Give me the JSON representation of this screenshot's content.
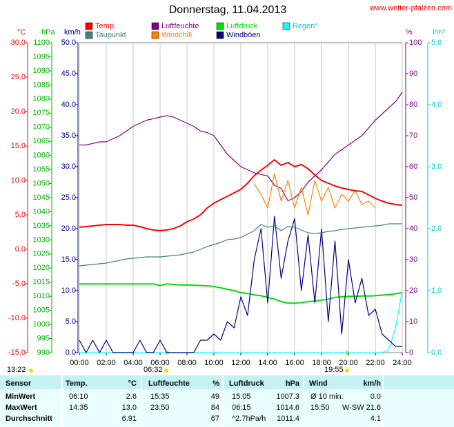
{
  "chart_data": {
    "type": "line",
    "title": "Donnerstag, 11.04.2013",
    "source": "www.wetter-pfalzen.com",
    "x": [
      0,
      0.5,
      1,
      1.5,
      2,
      2.5,
      3,
      3.5,
      4,
      4.5,
      5,
      5.5,
      6,
      6.5,
      7,
      7.5,
      8,
      8.5,
      9,
      9.5,
      10,
      10.5,
      11,
      11.5,
      12,
      12.5,
      13,
      13.5,
      14,
      14.5,
      15,
      15.5,
      16,
      16.5,
      17,
      17.5,
      18,
      18.5,
      19,
      19.5,
      20,
      20.5,
      21,
      21.5,
      22,
      22.5,
      23,
      23.5,
      24
    ],
    "xlim": [
      0,
      24
    ],
    "xticks": [
      {
        "value": 0,
        "label": "00:00"
      },
      {
        "value": 2,
        "label": "02:00"
      },
      {
        "value": 4,
        "label": "04:00"
      },
      {
        "value": 6,
        "label": "06:00"
      },
      {
        "value": 8,
        "label": "08:00"
      },
      {
        "value": 10,
        "label": "10:00"
      },
      {
        "value": 12,
        "label": "12:00"
      },
      {
        "value": 14,
        "label": "14:00"
      },
      {
        "value": 16,
        "label": "16:00"
      },
      {
        "value": 18,
        "label": "18:00"
      },
      {
        "value": 20,
        "label": "20:00"
      },
      {
        "value": 22,
        "label": "22:00"
      },
      {
        "value": 24,
        "label": "24:00"
      }
    ],
    "grid": true,
    "axes": [
      {
        "label": "°C",
        "color": "#ff0000",
        "lim": [
          -15,
          30
        ],
        "ticks": [
          {
            "value": 30,
            "label": "30.0"
          },
          {
            "value": 25,
            "label": "25.0"
          },
          {
            "value": 20,
            "label": "20.0"
          },
          {
            "value": 15,
            "label": "15.0"
          },
          {
            "value": 10,
            "label": "10.0"
          },
          {
            "value": 5,
            "label": "5.0"
          },
          {
            "value": 0,
            "label": "0.0"
          },
          {
            "value": -5,
            "label": "-5.0"
          },
          {
            "value": -10,
            "label": "-10.0"
          },
          {
            "value": -15,
            "label": "-15.0"
          }
        ]
      },
      {
        "label": "hPa",
        "color": "#00b000",
        "lim": [
          990,
          1100
        ],
        "ticks": [
          1100,
          1095,
          1090,
          1085,
          1080,
          1075,
          1070,
          1065,
          1060,
          1055,
          1050,
          1045,
          1040,
          1035,
          1030,
          1025,
          1020,
          1015,
          1010,
          1005,
          1000,
          995,
          990
        ]
      },
      {
        "label": "km/h",
        "color": "#000080",
        "lim": [
          0,
          50
        ],
        "ticks": [
          {
            "value": 50,
            "label": "50.0"
          },
          {
            "value": 45,
            "label": "45.0"
          },
          {
            "value": 40,
            "label": "40.0"
          },
          {
            "value": 35,
            "label": "35.0"
          },
          {
            "value": 30,
            "label": "30.0"
          },
          {
            "value": 25,
            "label": "25.0"
          },
          {
            "value": 20,
            "label": "20.0"
          },
          {
            "value": 15,
            "label": "15.0"
          },
          {
            "value": 10,
            "label": "10.0"
          },
          {
            "value": 5,
            "label": "5.0"
          },
          {
            "value": 0,
            "label": "0.0"
          }
        ]
      },
      {
        "label": "%",
        "color": "#800080",
        "lim": [
          0,
          100
        ],
        "ticks": [
          100,
          90,
          80,
          70,
          60,
          50,
          40,
          30,
          20,
          10,
          0
        ]
      },
      {
        "label": "l/m²",
        "color": "#00d0d0",
        "lim": [
          0,
          5
        ],
        "ticks": [
          {
            "value": 5,
            "label": "5.0"
          },
          {
            "value": 4,
            "label": "4.0"
          },
          {
            "value": 3,
            "label": "3.0"
          },
          {
            "value": 2,
            "label": "2.0"
          },
          {
            "value": 1,
            "label": "1.0"
          },
          {
            "value": 0,
            "label": "0.0"
          }
        ]
      }
    ],
    "series": [
      {
        "name": "Temp.",
        "color": "#ff0000",
        "axis": "°C",
        "values": [
          3.2,
          3.3,
          3.4,
          3.5,
          3.6,
          3.6,
          3.6,
          3.5,
          3.5,
          3.3,
          3.0,
          2.8,
          2.7,
          2.8,
          3.0,
          3.4,
          4.0,
          4.4,
          5.0,
          6.0,
          6.7,
          7.2,
          7.7,
          8.2,
          8.7,
          9.6,
          10.7,
          11.5,
          12.2,
          13.0,
          12.2,
          12.6,
          12.0,
          12.3,
          11.7,
          10.8,
          10.0,
          9.6,
          9.2,
          8.9,
          8.7,
          8.5,
          8.4,
          7.9,
          7.4,
          7.0,
          6.7,
          6.5,
          6.4
        ]
      },
      {
        "name": "Taupunkt",
        "color": "#408080",
        "axis": "°C",
        "values": [
          -2.4,
          -2.3,
          -2.2,
          -2.1,
          -2.0,
          -1.8,
          -1.6,
          -1.4,
          -1.3,
          -1.2,
          -1.1,
          -1.1,
          -1.1,
          -1.0,
          -0.9,
          -0.8,
          -0.6,
          -0.4,
          0.0,
          0.4,
          0.7,
          1.0,
          1.4,
          1.5,
          1.7,
          2.2,
          2.7,
          3.6,
          3.2,
          3.4,
          2.7,
          3.3,
          3.2,
          2.8,
          2.4,
          2.3,
          2.4,
          2.6,
          2.7,
          2.9,
          3.0,
          3.1,
          3.2,
          3.3,
          3.4,
          3.5,
          3.7,
          3.7,
          3.7
        ]
      },
      {
        "name": "Luftfeuchte",
        "color": "#800080",
        "axis": "%",
        "values": [
          67,
          67,
          67.5,
          68,
          68,
          69,
          70,
          71.5,
          73,
          74,
          75,
          75.5,
          76,
          76.5,
          76,
          75,
          74,
          73,
          71.5,
          71,
          70,
          67,
          64,
          62,
          60,
          59,
          58,
          57.5,
          57,
          54,
          53,
          49,
          50,
          52,
          55,
          57,
          59,
          61.5,
          64,
          65.5,
          67,
          68.5,
          70,
          72.5,
          75,
          77,
          79,
          81,
          84
        ]
      },
      {
        "name": "Windchill",
        "color": "#ff8000",
        "axis": "°C",
        "values": [
          null,
          null,
          null,
          null,
          null,
          null,
          null,
          null,
          null,
          null,
          null,
          null,
          null,
          null,
          null,
          null,
          null,
          null,
          null,
          null,
          null,
          null,
          null,
          null,
          null,
          null,
          9.5,
          8,
          6,
          11,
          7,
          10,
          6,
          9,
          5,
          10,
          7,
          9,
          6,
          8,
          7,
          8.5,
          6.5,
          7,
          6,
          null,
          null,
          null,
          null
        ]
      },
      {
        "name": "Luftdruck",
        "color": "#00e000",
        "axis": "hPa",
        "values": [
          1014.4,
          1014.4,
          1014.4,
          1014.4,
          1014.4,
          1014.4,
          1014.4,
          1014.4,
          1014.4,
          1014.4,
          1014.4,
          1014.4,
          1013.8,
          1014.4,
          1014.2,
          1014.0,
          1014.0,
          1013.9,
          1013.8,
          1013.7,
          1013.5,
          1013.0,
          1012.5,
          1012.0,
          1011.3,
          1011.0,
          1010.5,
          1010.2,
          1009.6,
          1009.0,
          1008.1,
          1007.6,
          1007.5,
          1007.8,
          1008.1,
          1008.3,
          1008.6,
          1009.0,
          1009.6,
          1009.8,
          1010.0,
          1010.0,
          1010.1,
          1010.1,
          1010.2,
          1010.4,
          1010.6,
          1010.9,
          1011.3
        ]
      },
      {
        "name": "Windböen",
        "color": "#000080",
        "axis": "km/h",
        "values": [
          2,
          0,
          2,
          0,
          2,
          0,
          0,
          0,
          0,
          2,
          0,
          0,
          2,
          0,
          0,
          0,
          0,
          0,
          2,
          2,
          3,
          2,
          5,
          4,
          9,
          6,
          15,
          20,
          8,
          22,
          12,
          18,
          21.6,
          10,
          19,
          8,
          20,
          5,
          18,
          3,
          15,
          8,
          12,
          6,
          7,
          3,
          2,
          1,
          1
        ]
      },
      {
        "name": "Regen°",
        "color": "#00ffff",
        "axis": "l/m²",
        "values": [
          0,
          0,
          0,
          0,
          0,
          0,
          0,
          0,
          0,
          0,
          0,
          0,
          0,
          0,
          0,
          0,
          0,
          0,
          0,
          0,
          0,
          0,
          0,
          0,
          0,
          0,
          0,
          0,
          0,
          0,
          0,
          0,
          0,
          0,
          0,
          0,
          0,
          0,
          0,
          0,
          0,
          0,
          0,
          0,
          0,
          0,
          0.05,
          0.4,
          1.0
        ]
      }
    ],
    "annotations": [
      "13:22",
      "06:32",
      "19:55"
    ]
  },
  "table": {
    "header": [
      "Sensor",
      "Temp.",
      "°C",
      "Luftfeuchte",
      "%",
      "Luftdruck",
      "hPa",
      "Wind",
      "km/h"
    ],
    "rows": [
      [
        "MinWert",
        "06:10",
        "2.6",
        "15:35",
        "49",
        "15:05",
        "1007.3",
        "Ø 10 min.",
        "0.0"
      ],
      [
        "MaxWert",
        "14:35",
        "13.0",
        "23:50",
        "84",
        "06:15",
        "1014.6",
        "15:50",
        "W-SW 21.6"
      ],
      [
        "Durchschnitt",
        null,
        "6.91",
        null,
        "67",
        "^2.7hPa/h",
        "1011.4",
        null,
        "4.1"
      ]
    ]
  }
}
